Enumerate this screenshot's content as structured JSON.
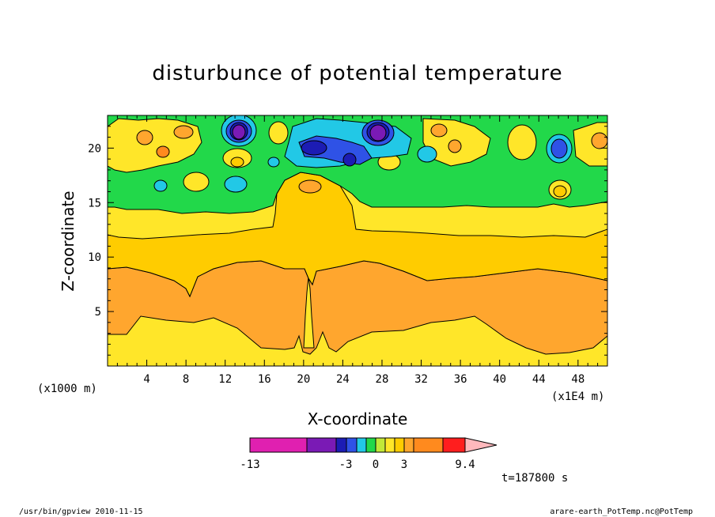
{
  "chart_data": {
    "type": "heatmap",
    "title": "disturbunce of potential temperature",
    "xlabel": "X-coordinate",
    "ylabel": "Z-coordinate",
    "x_unit": "(x1E4 m)",
    "y_unit": "(x1000 m)",
    "xlim": [
      0,
      51
    ],
    "ylim": [
      0,
      23
    ],
    "x_ticks": [
      4,
      8,
      12,
      16,
      20,
      24,
      28,
      32,
      36,
      40,
      44,
      48
    ],
    "y_ticks": [
      5,
      10,
      15,
      20
    ],
    "legend": {
      "colors": [
        "#e020b0",
        "#7a1ab5",
        "#1c1cb4",
        "#2f52e6",
        "#22c8e6",
        "#22d84a",
        "#c2e838",
        "#ffe629",
        "#ffcc00",
        "#ffa62e",
        "#ff8a1e",
        "#ff1e1e",
        "#ff7a70",
        "#ffb8bc"
      ],
      "tick_labels": [
        "-13",
        "-3",
        "0",
        "3",
        "9.4"
      ]
    },
    "time_label": "t=187800 s"
  },
  "footer": {
    "left": "/usr/bin/gpview   2010-11-15",
    "right": "arare-earth_PotTemp.nc@PotTemp"
  }
}
